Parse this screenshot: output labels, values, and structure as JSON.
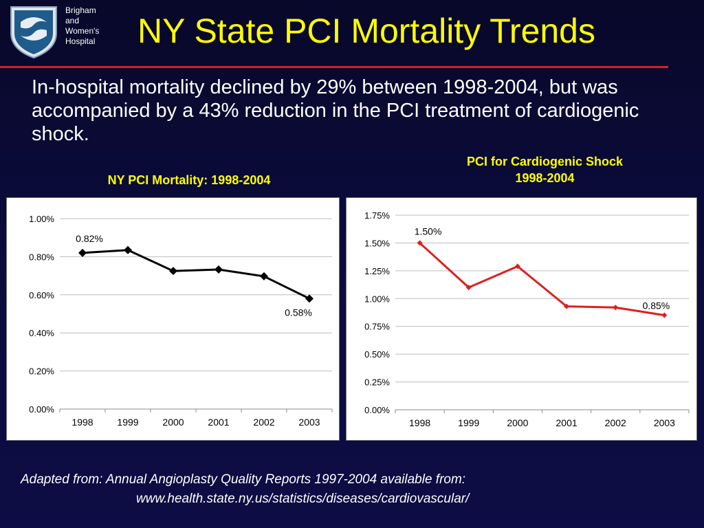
{
  "header": {
    "logo_lines": [
      "Brigham",
      "and",
      "Women's",
      "Hospital"
    ],
    "title": "NY State PCI Mortality Trends"
  },
  "intro": {
    "text": "In-hospital mortality declined by 29% between 1998-2004, but was accompanied by a 43% reduction in the PCI treatment of cardiogenic shock."
  },
  "colors": {
    "title": "#ffff00",
    "rule": "#d81f26",
    "series_left": "#000000",
    "series_right": "#e01e1e"
  },
  "chart_data": [
    {
      "type": "line",
      "title": "NY PCI Mortality: 1998-2004",
      "categories": [
        "1998",
        "1999",
        "2000",
        "2001",
        "2002",
        "2003"
      ],
      "series": [
        {
          "values": [
            0.82,
            0.835,
            0.725,
            0.733,
            0.697,
            0.58
          ]
        }
      ],
      "unit": "%",
      "ylim": [
        0,
        1.0
      ],
      "yticks": [
        0,
        0.2,
        0.4,
        0.6,
        0.8,
        1.0
      ],
      "ytick_labels": [
        "0.00%",
        "0.20%",
        "0.40%",
        "0.60%",
        "0.80%",
        "1.00%"
      ],
      "data_labels": [
        {
          "index": 0,
          "text": "0.82%"
        },
        {
          "index": 5,
          "text": "0.58%"
        }
      ],
      "grid": true,
      "marker": "diamond"
    },
    {
      "type": "line",
      "title_lines": [
        "PCI for Cardiogenic Shock",
        "1998-2004"
      ],
      "categories": [
        "1998",
        "1999",
        "2000",
        "2001",
        "2002",
        "2003"
      ],
      "series": [
        {
          "values": [
            1.5,
            1.1,
            1.29,
            0.93,
            0.92,
            0.85
          ]
        }
      ],
      "unit": "%",
      "ylim": [
        0,
        1.75
      ],
      "yticks": [
        0,
        0.25,
        0.5,
        0.75,
        1.0,
        1.25,
        1.5,
        1.75
      ],
      "ytick_labels": [
        "0.00%",
        "0.25%",
        "0.50%",
        "0.75%",
        "1.00%",
        "1.25%",
        "1.50%",
        "1.75%"
      ],
      "data_labels": [
        {
          "index": 0,
          "text": "1.50%"
        },
        {
          "index": 5,
          "text": "0.85%"
        }
      ],
      "grid": true,
      "marker": "diamond"
    }
  ],
  "footer": {
    "line1": "Adapted from:  Annual Angioplasty Quality Reports 1997-2004 available from:",
    "line2": "www.health.state.ny.us/statistics/diseases/cardiovascular/"
  }
}
